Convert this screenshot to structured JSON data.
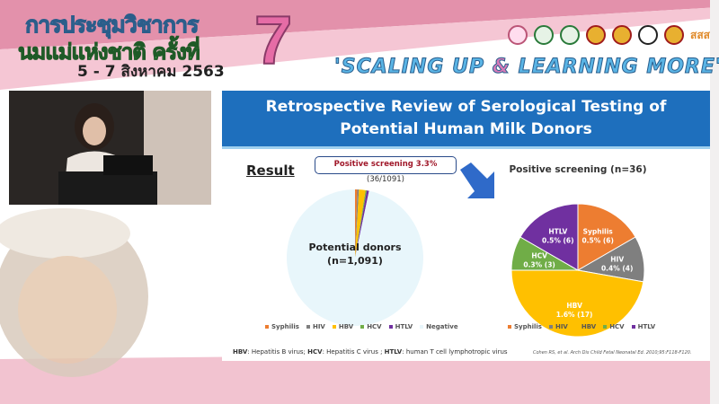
{
  "banner": {
    "thai_line1": "การประชุมวิชาการ",
    "thai_line2": "นมแม่แห่งชาติ ครั้งที่",
    "date": "5 - 7 สิงหาคม 2563",
    "edition": "7",
    "motto_part1": "'SCALING UP ",
    "motto_amp": "&",
    "motto_part2": " LEARNING MORE'",
    "logo_text": "สสส"
  },
  "slide": {
    "title_line1": "Retrospective Review of Serological Testing of",
    "title_line2": "Potential Human Milk Donors",
    "result_label": "Result",
    "callout_bold": "Positive screening 3.3%",
    "callout_detail": "(36/1091)",
    "footnote": {
      "hbv_abbr": "HBV",
      "hbv_text": ": Hepatitis B virus; ",
      "hcv_abbr": "HCV",
      "hcv_text": ": Hepatitis C virus ; ",
      "htlv_abbr": "HTLV",
      "htlv_text": ": human T cell lymphotropic virus"
    },
    "citation": "Cohen RS, et al. Arch Dis Child Fetal Neonatal Ed. 2010;95:F118-F120."
  },
  "chart_data": [
    {
      "type": "pie",
      "title": "",
      "center_label_line1": "Potential donors",
      "center_label_line2": "(n=1,091)",
      "categories": [
        "Syphilis",
        "HIV",
        "HBV",
        "HCV",
        "HTLV",
        "Negative"
      ],
      "values": [
        6,
        4,
        17,
        3,
        6,
        1055
      ],
      "colors": [
        "#ed7d31",
        "#7f7f7f",
        "#ffc000",
        "#70ad47",
        "#7030a0",
        "#e8f6fb"
      ],
      "legend_position": "bottom"
    },
    {
      "type": "pie",
      "title": "Positive screening (n=36)",
      "categories": [
        "Syphilis",
        "HIV",
        "HBV",
        "HCV",
        "HTLV"
      ],
      "values": [
        6,
        4,
        17,
        3,
        6
      ],
      "data_labels": [
        "0.5% (6)",
        "0.4% (4)",
        "1.6% (17)",
        "0.3% (3)",
        "0.5% (6)"
      ],
      "colors": [
        "#ed7d31",
        "#7f7f7f",
        "#ffc000",
        "#70ad47",
        "#7030a0"
      ],
      "legend_position": "bottom"
    }
  ]
}
